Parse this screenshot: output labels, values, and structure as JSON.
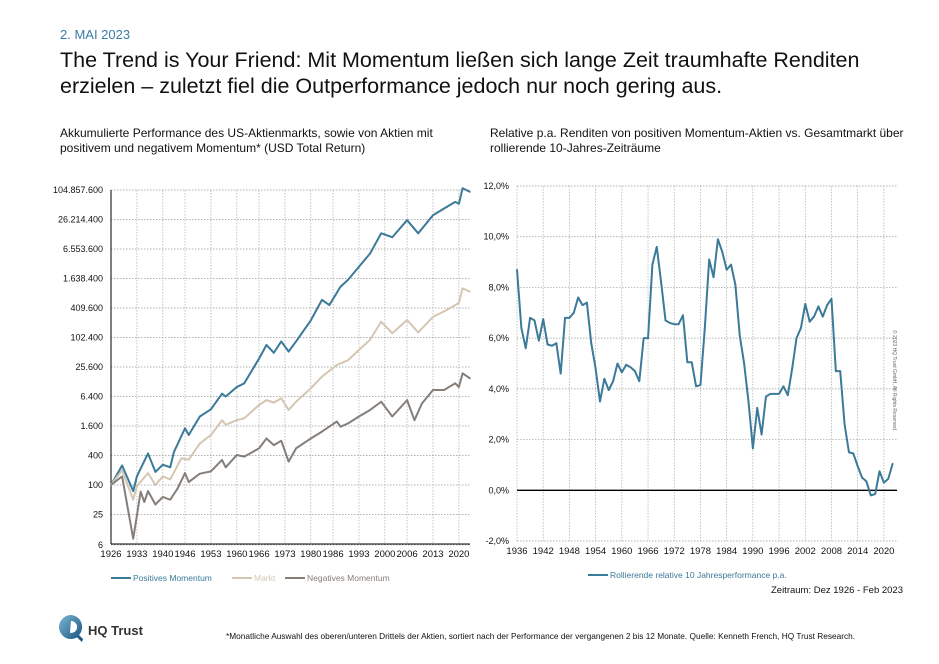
{
  "header": {
    "date": "2. MAI 2023",
    "headline": "The Trend is Your Friend: Mit Momentum ließen sich lange Zeit traumhafte Renditen erzielen – zuletzt fiel die Outperformance jedoch nur noch gering aus."
  },
  "chart_data": [
    {
      "type": "line",
      "title": "Akkumulierte Performance des US-Aktienmarkts, sowie von Aktien mit positivem und negativem Momentum* (USD Total Return)",
      "yscale": "log",
      "ylim": [
        6,
        104857600
      ],
      "xlim": [
        1926,
        2023
      ],
      "grid": true,
      "legend": "bottom",
      "yticks": [
        6,
        25,
        100,
        400,
        1600,
        6400,
        25600,
        102400,
        409600,
        1638400,
        6553600,
        26214400,
        104857600
      ],
      "ytick_labels": [
        "6",
        "25",
        "100",
        "400",
        "1.600",
        "6.400",
        "25.600",
        "102.400",
        "409.600",
        "1.638.400",
        "6.553.600",
        "26.214.400",
        "104.857.600"
      ],
      "xticks": [
        1926,
        1933,
        1940,
        1946,
        1953,
        1960,
        1966,
        1973,
        1980,
        1986,
        1993,
        2000,
        2006,
        2013,
        2020
      ],
      "series": [
        {
          "name": "Positives Momentum",
          "color": "#3b7a98",
          "x": [
            1926,
            1929,
            1932,
            1933,
            1936,
            1938,
            1940,
            1942,
            1943,
            1946,
            1947,
            1950,
            1953,
            1956,
            1957,
            1960,
            1962,
            1966,
            1968,
            1970,
            1972,
            1974,
            1976,
            1980,
            1983,
            1985,
            1988,
            1990,
            1993,
            1996,
            1999,
            2002,
            2006,
            2009,
            2013,
            2016,
            2019,
            2020,
            2021,
            2023
          ],
          "y": [
            100,
            250,
            75,
            150,
            440,
            185,
            260,
            230,
            470,
            1440,
            1050,
            2500,
            3500,
            7300,
            6400,
            10000,
            11900,
            38000,
            72000,
            50000,
            85000,
            53000,
            85000,
            230000,
            600000,
            470000,
            1110000,
            1530000,
            2850000,
            5300000,
            13700000,
            11400000,
            25400000,
            13700000,
            32000000,
            44000000,
            60000000,
            55000000,
            114000000,
            96000000
          ]
        },
        {
          "name": "Markt",
          "color": "#d5c6b3",
          "x": [
            1926,
            1929,
            1932,
            1933,
            1936,
            1938,
            1940,
            1942,
            1945,
            1947,
            1950,
            1953,
            1956,
            1957,
            1960,
            1962,
            1966,
            1968,
            1970,
            1972,
            1974,
            1976,
            1980,
            1983,
            1987,
            1990,
            1993,
            1996,
            1999,
            2002,
            2006,
            2009,
            2013,
            2016,
            2019,
            2020,
            2021,
            2023
          ],
          "y": [
            100,
            200,
            50,
            95,
            175,
            100,
            150,
            130,
            350,
            330,
            700,
            1050,
            2100,
            1700,
            2100,
            2300,
            4300,
            5400,
            4800,
            5900,
            3400,
            5000,
            9400,
            16300,
            28000,
            35000,
            57000,
            92000,
            215000,
            125000,
            235000,
            130000,
            270000,
            350000,
            470000,
            520000,
            1030000,
            880000
          ]
        },
        {
          "name": "Negatives Momentum",
          "color": "#857e79",
          "x": [
            1926,
            1929,
            1932,
            1933,
            1934,
            1935,
            1936,
            1938,
            1940,
            1942,
            1944,
            1946,
            1947,
            1950,
            1953,
            1956,
            1957,
            1960,
            1962,
            1966,
            1968,
            1970,
            1972,
            1974,
            1976,
            1980,
            1983,
            1987,
            1988,
            1990,
            1993,
            1996,
            1999,
            2002,
            2006,
            2008,
            2010,
            2013,
            2016,
            2019,
            2020,
            2021,
            2023
          ],
          "y": [
            100,
            150,
            8,
            24,
            73,
            45,
            75,
            40,
            57,
            50,
            85,
            175,
            115,
            170,
            190,
            325,
            230,
            410,
            380,
            560,
            890,
            650,
            800,
            300,
            560,
            890,
            1230,
            1970,
            1550,
            1800,
            2500,
            3400,
            5000,
            2500,
            5400,
            2100,
            4600,
            8700,
            8700,
            11900,
            10000,
            19000,
            15000
          ]
        }
      ]
    },
    {
      "type": "line",
      "title": "Relative p.a. Renditen von positiven Momentum-Aktien vs. Gesamtmarkt über rollierende 10-Jahres-Zeiträume",
      "ylim": [
        -2,
        12
      ],
      "xlim": [
        1936,
        2023
      ],
      "grid": true,
      "legend": "bottom",
      "yticks": [
        -2,
        0,
        2,
        4,
        6,
        8,
        10,
        12
      ],
      "ytick_labels": [
        "-2,0%",
        "0,0%",
        "2,0%",
        "4,0%",
        "6,0%",
        "8,0%",
        "10,0%",
        "12,0%"
      ],
      "xticks": [
        1936,
        1942,
        1948,
        1954,
        1960,
        1966,
        1972,
        1978,
        1984,
        1990,
        1996,
        2002,
        2008,
        2014,
        2020
      ],
      "series": [
        {
          "name": "Rollierende relative 10 Jahresperformance p.a.",
          "color": "#3b7a98",
          "x": [
            1936,
            1937,
            1938,
            1939,
            1940,
            1941,
            1942,
            1943,
            1944,
            1945,
            1946,
            1947,
            1948,
            1949,
            1950,
            1951,
            1952,
            1953,
            1954,
            1955,
            1956,
            1957,
            1958,
            1959,
            1960,
            1961,
            1962,
            1963,
            1964,
            1965,
            1966,
            1967,
            1968,
            1969,
            1970,
            1971,
            1972,
            1973,
            1974,
            1975,
            1976,
            1977,
            1978,
            1979,
            1980,
            1981,
            1982,
            1983,
            1984,
            1985,
            1986,
            1987,
            1988,
            1989,
            1990,
            1991,
            1992,
            1993,
            1994,
            1995,
            1996,
            1997,
            1998,
            1999,
            2000,
            2001,
            2002,
            2003,
            2004,
            2005,
            2006,
            2007,
            2008,
            2009,
            2010,
            2011,
            2012,
            2013,
            2014,
            2015,
            2016,
            2017,
            2018,
            2019,
            2020,
            2021,
            2022
          ],
          "y": [
            8.7,
            6.4,
            5.6,
            6.8,
            6.7,
            5.9,
            6.75,
            5.75,
            5.7,
            5.8,
            4.6,
            6.8,
            6.8,
            7.0,
            7.6,
            7.3,
            7.4,
            5.8,
            4.8,
            3.5,
            4.4,
            3.95,
            4.3,
            5.0,
            4.65,
            4.95,
            4.85,
            4.7,
            4.3,
            6.0,
            6.0,
            8.9,
            9.6,
            8.2,
            6.7,
            6.6,
            6.55,
            6.55,
            6.9,
            5.05,
            5.05,
            4.1,
            4.15,
            6.4,
            9.1,
            8.4,
            9.9,
            9.4,
            8.7,
            8.9,
            8.1,
            6.1,
            5.0,
            3.5,
            1.65,
            3.25,
            2.2,
            3.7,
            3.8,
            3.8,
            3.8,
            4.1,
            3.75,
            4.8,
            6.0,
            6.4,
            7.35,
            6.65,
            6.85,
            7.25,
            6.85,
            7.3,
            7.55,
            4.7,
            4.7,
            2.6,
            1.5,
            1.45,
            0.95,
            0.5,
            0.35,
            -0.2,
            -0.15,
            0.75,
            0.3,
            0.45,
            1.05
          ]
        }
      ],
      "note": "Zeitraum: Dez 1926 - Feb 2023"
    }
  ],
  "copyright": "© 2023 HQ Trust GmbH, All Rights Reserved.",
  "footer": {
    "brand": "HQ Trust",
    "footnote": "*Monatliche Auswahl des oberen/unteren Drittels der Aktien, sortiert nach der Performance der vergangenen 2 bis 12 Monate. Quelle: Kenneth French, HQ Trust Research."
  }
}
